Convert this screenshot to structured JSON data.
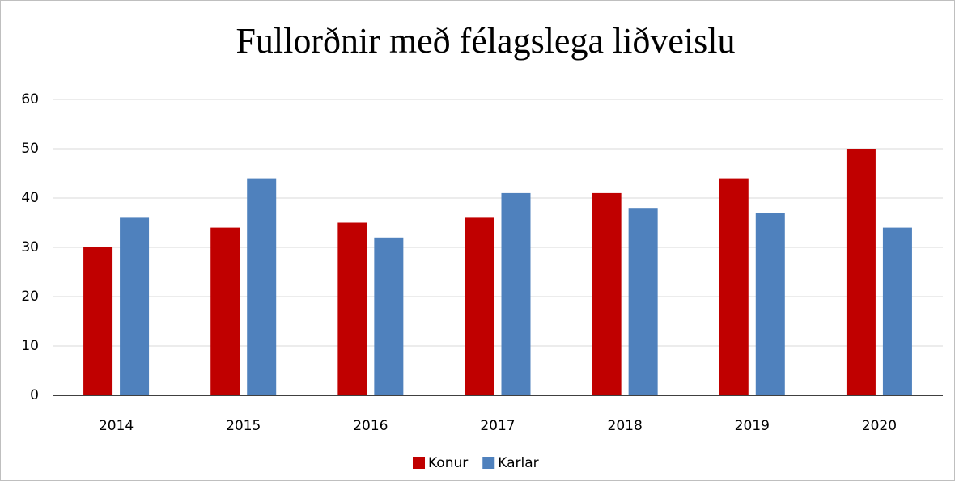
{
  "chart_data": {
    "type": "bar",
    "title": "Fullorðnir með félagslega liðveislu",
    "categories": [
      "2014",
      "2015",
      "2016",
      "2017",
      "2018",
      "2019",
      "2020"
    ],
    "series": [
      {
        "name": "Konur",
        "color": "#c00000",
        "values": [
          30,
          34,
          35,
          36,
          41,
          44,
          50
        ]
      },
      {
        "name": "Karlar",
        "color": "#4f81bd",
        "values": [
          36,
          44,
          32,
          41,
          38,
          37,
          34
        ]
      }
    ],
    "ylim": [
      0,
      60
    ],
    "yticks": [
      0,
      10,
      20,
      30,
      40,
      50,
      60
    ],
    "grid": true,
    "legend": "bottom"
  }
}
